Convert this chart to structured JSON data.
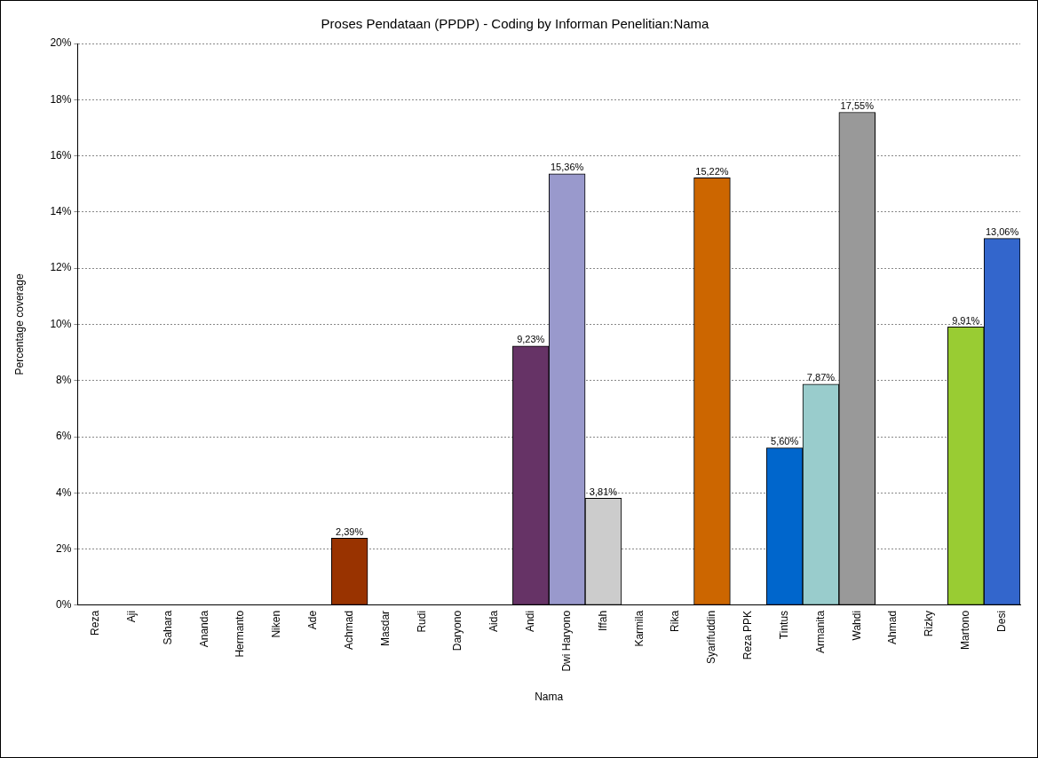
{
  "chart_data": {
    "type": "bar",
    "title": "Proses Pendataan (PPDP) - Coding by Informan Penelitian:Nama",
    "xlabel": "Nama",
    "ylabel": "Percentage coverage",
    "categories": [
      "Reza",
      "Aji",
      "Sahara",
      "Ananda",
      "Hermanto",
      "Niken",
      "Ade",
      "Achmad",
      "Masdar",
      "Rudi",
      "Daryono",
      "Aida",
      "Andi",
      "Dwi Haryono",
      "Iffah",
      "Karmila",
      "Rika",
      "Syarifuddin",
      "Reza PPK",
      "Tintus",
      "Armanita",
      "Wahdi",
      "Ahmad",
      "Rizky",
      "Martono",
      "Desi"
    ],
    "values": [
      0,
      0,
      0,
      0,
      0,
      0,
      0,
      2.39,
      0,
      0,
      0,
      0,
      9.23,
      15.36,
      3.81,
      0,
      0,
      15.22,
      0,
      5.6,
      7.87,
      17.55,
      0,
      0,
      9.91,
      13.06
    ],
    "value_labels": [
      null,
      null,
      null,
      null,
      null,
      null,
      null,
      "2,39%",
      null,
      null,
      null,
      null,
      "9,23%",
      "15,36%",
      "3,81%",
      null,
      null,
      "15,22%",
      null,
      "5,60%",
      "7,87%",
      "17,55%",
      null,
      null,
      "9,91%",
      "13,06%"
    ],
    "colors": [
      "#999999",
      "#999999",
      "#999999",
      "#999999",
      "#999999",
      "#999999",
      "#999999",
      "#993300",
      "#999999",
      "#999999",
      "#999999",
      "#999999",
      "#663366",
      "#9999cc",
      "#cccccc",
      "#999999",
      "#999999",
      "#cc6600",
      "#999999",
      "#0066cc",
      "#99cccc",
      "#999999",
      "#999999",
      "#999999",
      "#99cc33",
      "#3366cc"
    ],
    "ylim": [
      0,
      20
    ],
    "yticks": [
      {
        "value": 0,
        "label": "0%"
      },
      {
        "value": 2,
        "label": "2%"
      },
      {
        "value": 4,
        "label": "4%"
      },
      {
        "value": 6,
        "label": "6%"
      },
      {
        "value": 8,
        "label": "8%"
      },
      {
        "value": 10,
        "label": "10%"
      },
      {
        "value": 12,
        "label": "12%"
      },
      {
        "value": 14,
        "label": "14%"
      },
      {
        "value": 16,
        "label": "16%"
      },
      {
        "value": 18,
        "label": "18%"
      },
      {
        "value": 20,
        "label": "20%"
      }
    ],
    "grid": "y",
    "legend": false
  }
}
